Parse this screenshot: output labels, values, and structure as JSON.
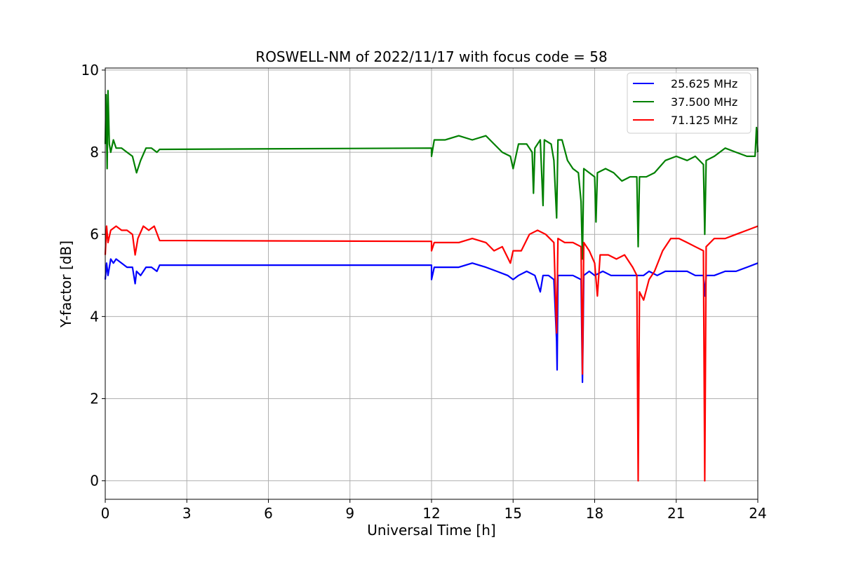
{
  "chart_data": {
    "type": "line",
    "title": "ROSWELL-NM of 2022/11/17 with focus code = 58",
    "xlabel": "Universal Time [h]",
    "ylabel": "Y-factor [dB]",
    "xlim": [
      0,
      24
    ],
    "ylim": [
      -0.45,
      10.05
    ],
    "xticks": [
      0,
      3,
      6,
      9,
      12,
      15,
      18,
      21,
      24
    ],
    "yticks": [
      0,
      2,
      4,
      6,
      8,
      10
    ],
    "xtick_labels": [
      "0",
      "3",
      "6",
      "9",
      "12",
      "15",
      "18",
      "21",
      "24"
    ],
    "ytick_labels": [
      "0",
      "2",
      "4",
      "6",
      "8",
      "10"
    ],
    "grid": true,
    "legend_position": "top-right",
    "series": [
      {
        "name": "25.625 MHz",
        "color": "#0000ff",
        "points": [
          [
            0.0,
            4.9
          ],
          [
            0.05,
            5.3
          ],
          [
            0.1,
            5.0
          ],
          [
            0.2,
            5.4
          ],
          [
            0.3,
            5.3
          ],
          [
            0.4,
            5.4
          ],
          [
            0.6,
            5.3
          ],
          [
            0.8,
            5.2
          ],
          [
            1.0,
            5.2
          ],
          [
            1.1,
            4.8
          ],
          [
            1.15,
            5.1
          ],
          [
            1.3,
            5.0
          ],
          [
            1.5,
            5.2
          ],
          [
            1.7,
            5.2
          ],
          [
            1.9,
            5.1
          ],
          [
            2.0,
            5.25
          ],
          [
            12.0,
            5.25
          ],
          [
            12.0,
            4.9
          ],
          [
            12.1,
            5.2
          ],
          [
            12.5,
            5.2
          ],
          [
            13.0,
            5.2
          ],
          [
            13.5,
            5.3
          ],
          [
            14.0,
            5.2
          ],
          [
            14.4,
            5.1
          ],
          [
            14.8,
            5.0
          ],
          [
            15.0,
            4.9
          ],
          [
            15.2,
            5.0
          ],
          [
            15.5,
            5.1
          ],
          [
            15.8,
            5.0
          ],
          [
            16.0,
            4.6
          ],
          [
            16.1,
            5.0
          ],
          [
            16.3,
            5.0
          ],
          [
            16.5,
            4.9
          ],
          [
            16.6,
            3.4
          ],
          [
            16.62,
            2.7
          ],
          [
            16.65,
            5.0
          ],
          [
            16.9,
            5.0
          ],
          [
            17.2,
            5.0
          ],
          [
            17.5,
            4.9
          ],
          [
            17.55,
            2.4
          ],
          [
            17.6,
            5.0
          ],
          [
            17.8,
            5.1
          ],
          [
            18.0,
            5.0
          ],
          [
            18.3,
            5.1
          ],
          [
            18.6,
            5.0
          ],
          [
            19.0,
            5.0
          ],
          [
            19.3,
            5.0
          ],
          [
            19.6,
            5.0
          ],
          [
            19.8,
            5.0
          ],
          [
            20.0,
            5.1
          ],
          [
            20.3,
            5.0
          ],
          [
            20.6,
            5.1
          ],
          [
            21.0,
            5.1
          ],
          [
            21.4,
            5.1
          ],
          [
            21.7,
            5.0
          ],
          [
            22.0,
            5.0
          ],
          [
            22.05,
            4.5
          ],
          [
            22.1,
            5.0
          ],
          [
            22.4,
            5.0
          ],
          [
            22.8,
            5.1
          ],
          [
            23.2,
            5.1
          ],
          [
            23.6,
            5.2
          ],
          [
            24.0,
            5.3
          ]
        ]
      },
      {
        "name": "37.500 MHz",
        "color": "#008000",
        "points": [
          [
            0.0,
            8.2
          ],
          [
            0.03,
            9.4
          ],
          [
            0.07,
            7.6
          ],
          [
            0.1,
            9.5
          ],
          [
            0.15,
            8.2
          ],
          [
            0.2,
            8.0
          ],
          [
            0.3,
            8.3
          ],
          [
            0.4,
            8.1
          ],
          [
            0.6,
            8.1
          ],
          [
            0.8,
            8.0
          ],
          [
            1.0,
            7.9
          ],
          [
            1.15,
            7.5
          ],
          [
            1.3,
            7.8
          ],
          [
            1.5,
            8.1
          ],
          [
            1.7,
            8.1
          ],
          [
            1.9,
            8.0
          ],
          [
            2.0,
            8.07
          ],
          [
            12.0,
            8.1
          ],
          [
            12.0,
            7.9
          ],
          [
            12.1,
            8.3
          ],
          [
            12.5,
            8.3
          ],
          [
            13.0,
            8.4
          ],
          [
            13.5,
            8.3
          ],
          [
            14.0,
            8.4
          ],
          [
            14.3,
            8.2
          ],
          [
            14.6,
            8.0
          ],
          [
            14.9,
            7.9
          ],
          [
            15.0,
            7.6
          ],
          [
            15.2,
            8.2
          ],
          [
            15.5,
            8.2
          ],
          [
            15.7,
            8.0
          ],
          [
            15.75,
            7.0
          ],
          [
            15.8,
            8.1
          ],
          [
            16.0,
            8.3
          ],
          [
            16.1,
            6.7
          ],
          [
            16.15,
            8.3
          ],
          [
            16.4,
            8.2
          ],
          [
            16.5,
            7.8
          ],
          [
            16.6,
            6.4
          ],
          [
            16.65,
            8.3
          ],
          [
            16.8,
            8.3
          ],
          [
            17.0,
            7.8
          ],
          [
            17.2,
            7.6
          ],
          [
            17.4,
            7.5
          ],
          [
            17.5,
            6.8
          ],
          [
            17.55,
            5.4
          ],
          [
            17.6,
            7.6
          ],
          [
            17.8,
            7.5
          ],
          [
            18.0,
            7.4
          ],
          [
            18.05,
            6.3
          ],
          [
            18.1,
            7.5
          ],
          [
            18.4,
            7.6
          ],
          [
            18.7,
            7.5
          ],
          [
            19.0,
            7.3
          ],
          [
            19.3,
            7.4
          ],
          [
            19.55,
            7.4
          ],
          [
            19.6,
            5.7
          ],
          [
            19.65,
            7.4
          ],
          [
            19.9,
            7.4
          ],
          [
            20.2,
            7.5
          ],
          [
            20.6,
            7.8
          ],
          [
            21.0,
            7.9
          ],
          [
            21.4,
            7.8
          ],
          [
            21.7,
            7.9
          ],
          [
            22.0,
            7.7
          ],
          [
            22.05,
            6.0
          ],
          [
            22.1,
            7.8
          ],
          [
            22.4,
            7.9
          ],
          [
            22.8,
            8.1
          ],
          [
            23.2,
            8.0
          ],
          [
            23.6,
            7.9
          ],
          [
            23.9,
            7.9
          ],
          [
            23.95,
            8.6
          ],
          [
            24.0,
            8.0
          ]
        ]
      },
      {
        "name": "71.125 MHz",
        "color": "#ff0000",
        "points": [
          [
            0.0,
            5.5
          ],
          [
            0.05,
            6.2
          ],
          [
            0.1,
            5.8
          ],
          [
            0.2,
            6.1
          ],
          [
            0.4,
            6.2
          ],
          [
            0.6,
            6.1
          ],
          [
            0.8,
            6.1
          ],
          [
            1.0,
            6.0
          ],
          [
            1.1,
            5.5
          ],
          [
            1.2,
            5.9
          ],
          [
            1.4,
            6.2
          ],
          [
            1.6,
            6.1
          ],
          [
            1.8,
            6.2
          ],
          [
            2.0,
            5.85
          ],
          [
            12.0,
            5.83
          ],
          [
            12.0,
            5.6
          ],
          [
            12.1,
            5.8
          ],
          [
            12.5,
            5.8
          ],
          [
            13.0,
            5.8
          ],
          [
            13.5,
            5.9
          ],
          [
            14.0,
            5.8
          ],
          [
            14.3,
            5.6
          ],
          [
            14.6,
            5.7
          ],
          [
            14.9,
            5.3
          ],
          [
            15.0,
            5.6
          ],
          [
            15.3,
            5.6
          ],
          [
            15.6,
            6.0
          ],
          [
            15.9,
            6.1
          ],
          [
            16.2,
            6.0
          ],
          [
            16.5,
            5.8
          ],
          [
            16.6,
            3.6
          ],
          [
            16.65,
            5.9
          ],
          [
            16.9,
            5.8
          ],
          [
            17.2,
            5.8
          ],
          [
            17.5,
            5.7
          ],
          [
            17.55,
            2.6
          ],
          [
            17.6,
            5.8
          ],
          [
            17.8,
            5.6
          ],
          [
            18.0,
            5.3
          ],
          [
            18.1,
            4.5
          ],
          [
            18.2,
            5.5
          ],
          [
            18.5,
            5.5
          ],
          [
            18.8,
            5.4
          ],
          [
            19.1,
            5.5
          ],
          [
            19.4,
            5.2
          ],
          [
            19.55,
            5.0
          ],
          [
            19.6,
            0.0
          ],
          [
            19.65,
            4.6
          ],
          [
            19.8,
            4.4
          ],
          [
            20.0,
            4.9
          ],
          [
            20.2,
            5.1
          ],
          [
            20.5,
            5.6
          ],
          [
            20.8,
            5.9
          ],
          [
            21.1,
            5.9
          ],
          [
            21.4,
            5.8
          ],
          [
            21.7,
            5.7
          ],
          [
            22.0,
            5.6
          ],
          [
            22.05,
            0.0
          ],
          [
            22.1,
            5.7
          ],
          [
            22.4,
            5.9
          ],
          [
            22.8,
            5.9
          ],
          [
            23.2,
            6.0
          ],
          [
            23.6,
            6.1
          ],
          [
            24.0,
            6.2
          ]
        ]
      }
    ]
  }
}
